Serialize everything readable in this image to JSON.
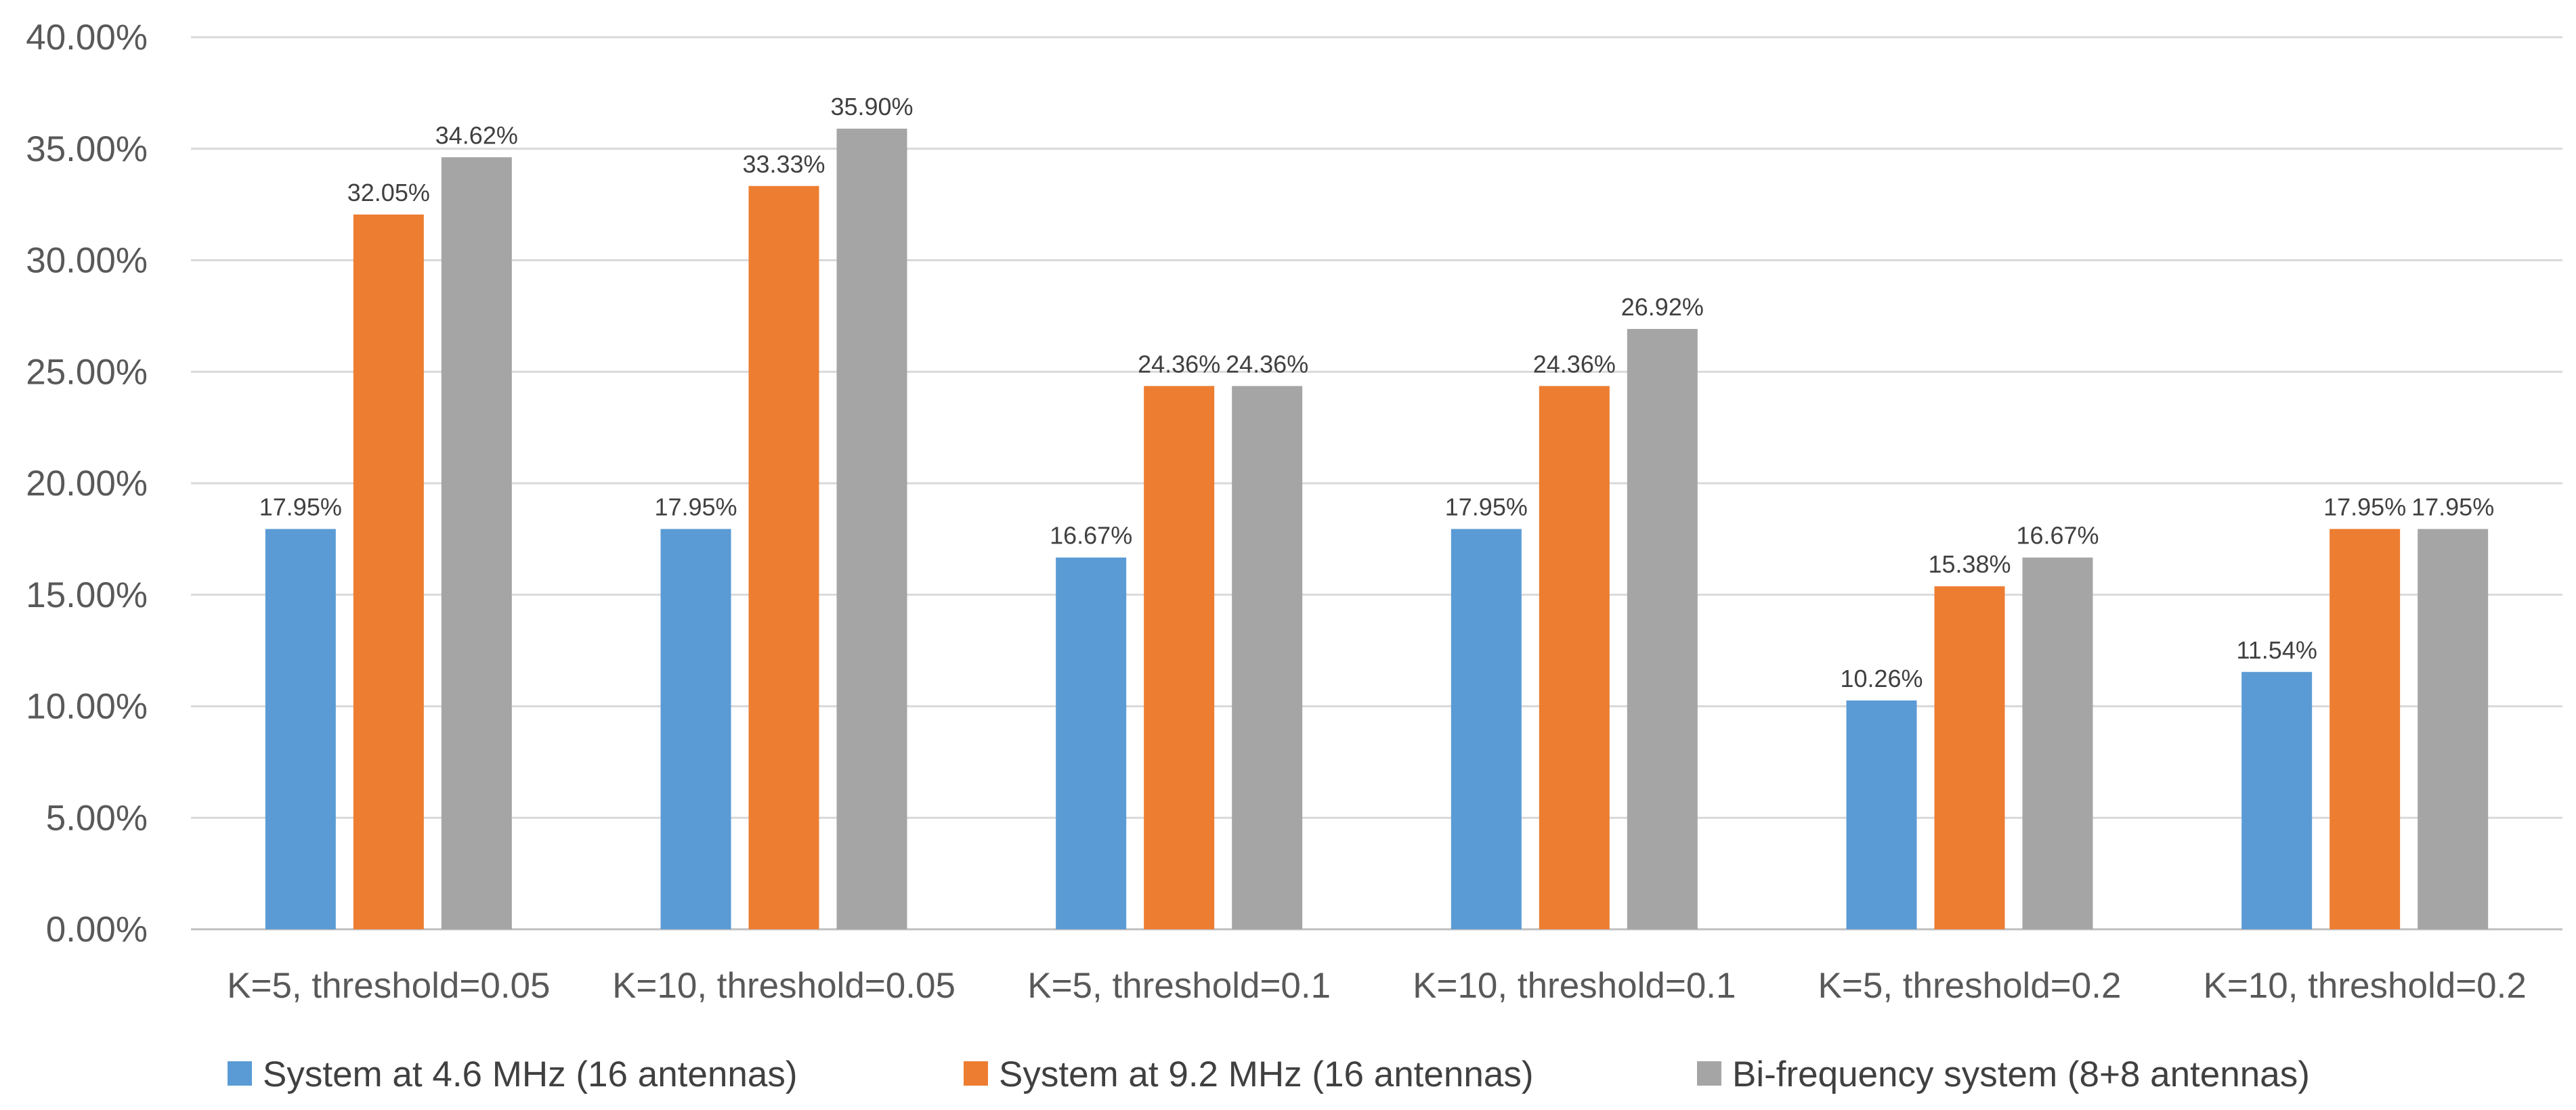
{
  "chart_data": {
    "type": "bar",
    "title": "",
    "xlabel": "",
    "ylabel": "",
    "ylim": [
      0,
      40
    ],
    "ytick_step": 5,
    "ytick_format": "percent_2dp",
    "grid": true,
    "legend_position": "bottom",
    "categories": [
      "K=5, threshold=0.05",
      "K=10, threshold=0.05",
      "K=5, threshold=0.1",
      "K=10, threshold=0.1",
      "K=5, threshold=0.2",
      "K=10, threshold=0.2"
    ],
    "series": [
      {
        "name": "System at 4.6 MHz (16 antennas)",
        "color": "#5b9bd5",
        "values": [
          17.95,
          17.95,
          16.67,
          17.95,
          10.26,
          11.54
        ]
      },
      {
        "name": "System at 9.2 MHz (16 antennas)",
        "color": "#ed7d31",
        "values": [
          32.05,
          33.33,
          24.36,
          24.36,
          15.38,
          17.95
        ]
      },
      {
        "name": "Bi-frequency system (8+8 antennas)",
        "color": "#a5a5a5",
        "values": [
          34.62,
          35.9,
          24.36,
          26.92,
          16.67,
          17.95
        ]
      }
    ]
  }
}
